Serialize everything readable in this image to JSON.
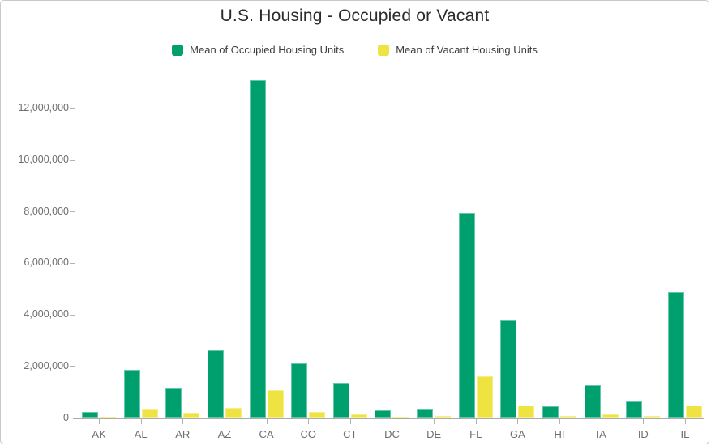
{
  "chart_data": {
    "type": "bar",
    "title": "U.S. Housing - Occupied or Vacant",
    "categories": [
      "AK",
      "AL",
      "AR",
      "AZ",
      "CA",
      "CO",
      "CT",
      "DC",
      "DE",
      "FL",
      "GA",
      "HI",
      "IA",
      "ID",
      "IL"
    ],
    "series": [
      {
        "name": "Mean of Occupied Housing Units",
        "color": "#00a06e",
        "values": [
          230000,
          1860000,
          1150000,
          2600000,
          13100000,
          2100000,
          1360000,
          270000,
          340000,
          7930000,
          3810000,
          445000,
          1250000,
          620000,
          4870000
        ]
      },
      {
        "name": "Mean of Vacant Housing Units",
        "color": "#efe342",
        "values": [
          45000,
          360000,
          190000,
          380000,
          1080000,
          210000,
          125000,
          25000,
          65000,
          1600000,
          470000,
          65000,
          115000,
          70000,
          470000
        ]
      }
    ],
    "y_axis": {
      "tick_values": [
        0,
        2000000,
        4000000,
        6000000,
        8000000,
        10000000,
        12000000
      ],
      "tick_labels": [
        "0",
        "2,000,000",
        "4,000,000",
        "6,000,000",
        "8,000,000",
        "10,000,000",
        "12,000,000"
      ]
    },
    "ylim": [
      0,
      13200000
    ],
    "grid": false,
    "legend_position": "top",
    "colors": {
      "title_text": "#2b2b2b",
      "legend_text": "#3d3d3d",
      "axis_text": "#6e6e6e",
      "axis_line": "#9b9b9b"
    }
  }
}
